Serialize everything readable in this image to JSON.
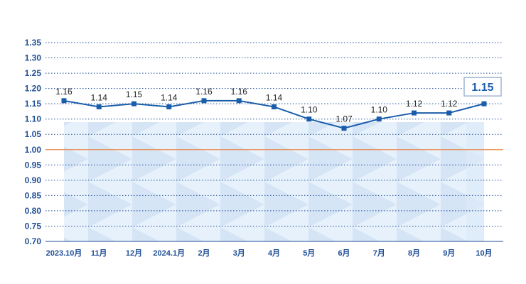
{
  "chart_data": {
    "type": "line",
    "categories": [
      "2023.10月",
      "11月",
      "12月",
      "2024.1月",
      "2月",
      "3月",
      "4月",
      "5月",
      "6月",
      "7月",
      "8月",
      "9月",
      "10月"
    ],
    "values": [
      1.16,
      1.14,
      1.15,
      1.14,
      1.16,
      1.16,
      1.14,
      1.1,
      1.07,
      1.1,
      1.12,
      1.12,
      1.15
    ],
    "data_labels": [
      "1.16",
      "1.14",
      "1.15",
      "1.14",
      "1.16",
      "1.16",
      "1.14",
      "1.10",
      "1.07",
      "1.10",
      "1.12",
      "1.12",
      ""
    ],
    "highlight_label": "1.15",
    "yticks": [
      "0.70",
      "0.75",
      "0.80",
      "0.85",
      "0.90",
      "0.95",
      "1.00",
      "1.05",
      "1.10",
      "1.15",
      "1.20",
      "1.25",
      "1.30",
      "1.35"
    ],
    "ylim": [
      0.7,
      1.35
    ],
    "reference_line": 1.0,
    "grid": true,
    "legend": "none",
    "title": "",
    "xlabel": "",
    "ylabel": "",
    "colors": {
      "line": "#1a5dab",
      "marker": "#1a5dab",
      "grid": "#1f4e96",
      "reference": "#e8894a",
      "axis_text": "#1f4e96",
      "band": "#dbe9f8",
      "band_dark": "#c8ddf3",
      "highlight_border": "#9fb5d4"
    }
  }
}
